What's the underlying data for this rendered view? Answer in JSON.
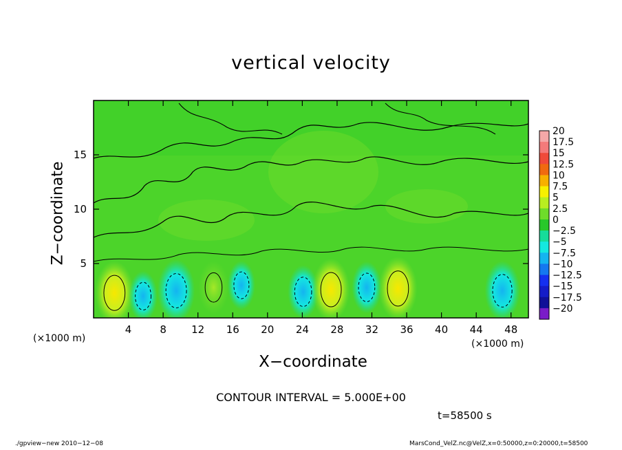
{
  "chart_data": {
    "type": "heatmap",
    "title": "vertical velocity",
    "xlabel": "X−coordinate",
    "ylabel": "Z−coordinate",
    "x_unit_label": "(×1000 m)",
    "xlim": [
      0,
      50
    ],
    "ylim": [
      0,
      20
    ],
    "x_ticks": [
      4,
      8,
      12,
      16,
      20,
      24,
      28,
      32,
      36,
      40,
      44,
      48
    ],
    "y_ticks": [
      5,
      10,
      15
    ],
    "contour_interval_text": "CONTOUR INTERVAL = 5.000E+00",
    "colorbar": {
      "levels": [
        20,
        17.5,
        15,
        12.5,
        10,
        7.5,
        5,
        2.5,
        0,
        -2.5,
        -5,
        -7.5,
        -10,
        -12.5,
        -15,
        -17.5,
        -20
      ],
      "labels": [
        "20",
        "17.5",
        "15",
        "12.5",
        "10",
        "7.5",
        "5",
        "2.5",
        "0",
        "−2.5",
        "−5",
        "−7.5",
        "−10",
        "−12.5",
        "−15",
        "−17.5",
        "−20"
      ],
      "colors": [
        "#f4a8a8",
        "#f47a7a",
        "#f04a3a",
        "#f06a10",
        "#f7b000",
        "#f7f000",
        "#b8ee20",
        "#6edc2a",
        "#28c82a",
        "#16dc9a",
        "#14e8e0",
        "#14b4f0",
        "#1478f0",
        "#1430f0",
        "#141cc8",
        "#101098",
        "#7a1cc8"
      ]
    },
    "features": [
      {
        "x": 2.4,
        "z": 2.3,
        "value": 7.5
      },
      {
        "x": 5.7,
        "z": 2.0,
        "value": -3
      },
      {
        "x": 9.5,
        "z": 2.5,
        "value": -7
      },
      {
        "x": 13.8,
        "z": 2.8,
        "value": 4
      },
      {
        "x": 17.0,
        "z": 3.0,
        "value": -2.5
      },
      {
        "x": 24.1,
        "z": 2.4,
        "value": -4
      },
      {
        "x": 27.3,
        "z": 2.6,
        "value": 7
      },
      {
        "x": 31.4,
        "z": 2.8,
        "value": -3.5
      },
      {
        "x": 35.0,
        "z": 2.7,
        "value": 7.5
      },
      {
        "x": 47.0,
        "z": 2.5,
        "value": -6
      }
    ]
  },
  "annotations": {
    "time": "t=58500 s",
    "footer_left": "./gpview−new   2010−12−08",
    "footer_right": "MarsCond_VelZ.nc@VelZ,x=0:50000,z=0:20000,t=58500"
  }
}
